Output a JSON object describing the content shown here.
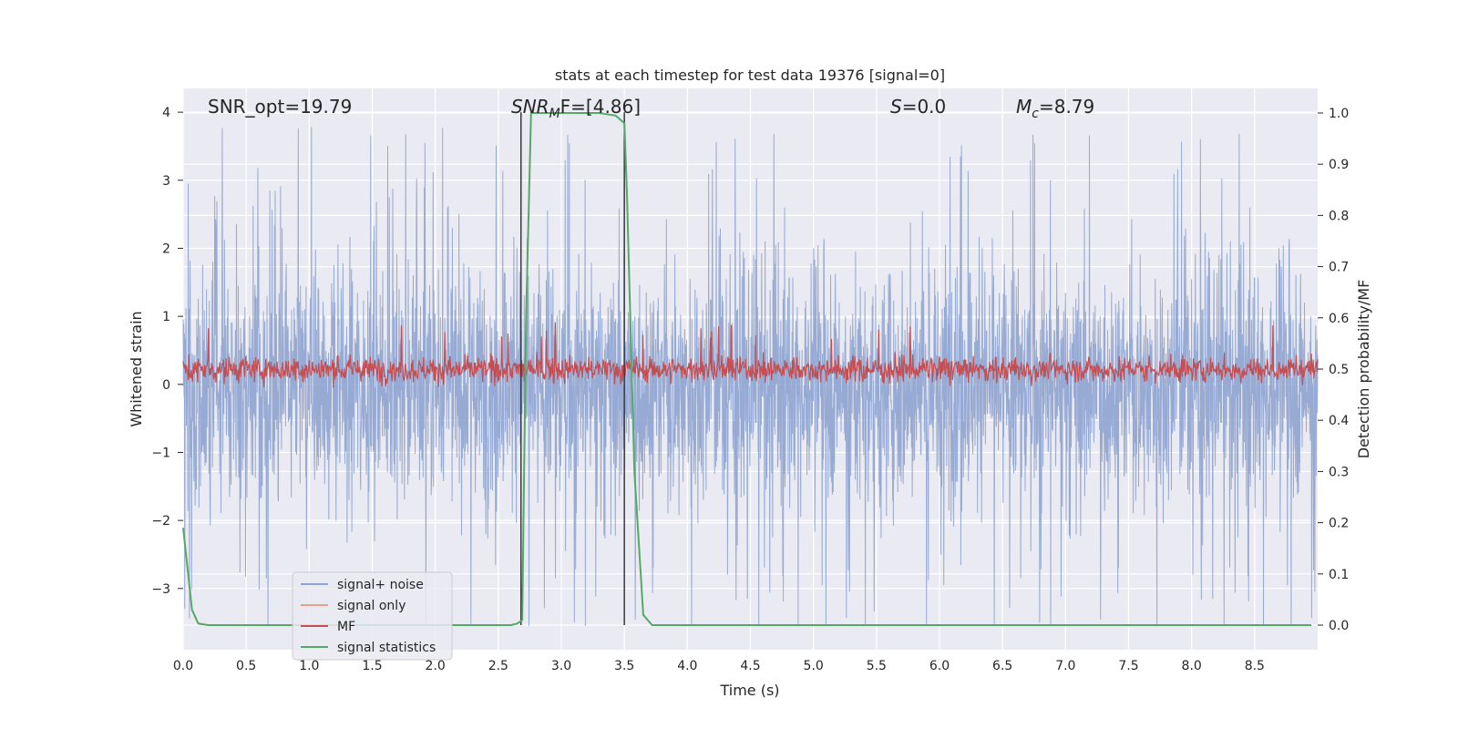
{
  "chart_data": {
    "type": "line",
    "title": "stats at each timestep for test data 19376 [signal=0]",
    "xlabel": "Time (s)",
    "ylabel": "Whitened strain",
    "ylabel_right": "Detection probability/MF",
    "xlim": [
      0.0,
      9.0
    ],
    "ylim": [
      -3.9,
      4.35
    ],
    "ylim_right": [
      -0.048,
      1.048
    ],
    "x_ticks": [
      "0.0",
      "0.5",
      "1.0",
      "1.5",
      "2.0",
      "2.5",
      "3.0",
      "3.5",
      "4.0",
      "4.5",
      "5.0",
      "5.5",
      "6.0",
      "6.5",
      "7.0",
      "7.5",
      "8.0",
      "8.5"
    ],
    "y_ticks": [
      "−3",
      "−2",
      "−1",
      "0",
      "1",
      "2",
      "3",
      "4"
    ],
    "y_right_ticks": [
      "0.0",
      "0.1",
      "0.2",
      "0.3",
      "0.4",
      "0.5",
      "0.6",
      "0.7",
      "0.8",
      "0.9",
      "1.0"
    ],
    "grid": true,
    "legend_position": "lower-left",
    "annotations": {
      "snr_opt": "SNR_opt=19.79",
      "snr_mf_base": "SNR",
      "snr_mf_sub": "M",
      "snr_mf_rest": "F=[4.86]",
      "s_sym": "S",
      "s_val": "=0.0",
      "mc_sym": "M",
      "mc_sub": "c",
      "mc_val": "=8.79"
    },
    "vlines": [
      2.68,
      3.5
    ],
    "series": [
      {
        "name": "signal+ noise",
        "color": "#8ea3cf",
        "axis": "left",
        "envelope": {
          "typical_amplitude": 1.6,
          "peak_max": 4.0,
          "peak_min": -3.55
        }
      },
      {
        "name": "signal only",
        "color": "#e8a285",
        "axis": "left",
        "x": [],
        "y": []
      },
      {
        "name": "MF",
        "color": "#c44e52",
        "axis": "left",
        "envelope": {
          "center": 0.22,
          "typical_amplitude": 0.3,
          "peak_max": 1.0
        }
      },
      {
        "name": "signal statistics",
        "color": "#55a868",
        "axis": "right",
        "x": [
          0.0,
          0.07,
          0.12,
          0.2,
          0.3,
          2.6,
          2.65,
          2.69,
          2.72,
          2.76,
          3.3,
          3.43,
          3.5,
          3.52,
          3.58,
          3.65,
          3.72,
          3.8,
          8.95
        ],
        "y": [
          0.19,
          0.03,
          0.003,
          0.0,
          0.0,
          0.0,
          0.003,
          0.01,
          0.6,
          1.0,
          1.0,
          0.995,
          0.98,
          0.85,
          0.3,
          0.02,
          0.0,
          0.0,
          0.0
        ]
      }
    ]
  }
}
